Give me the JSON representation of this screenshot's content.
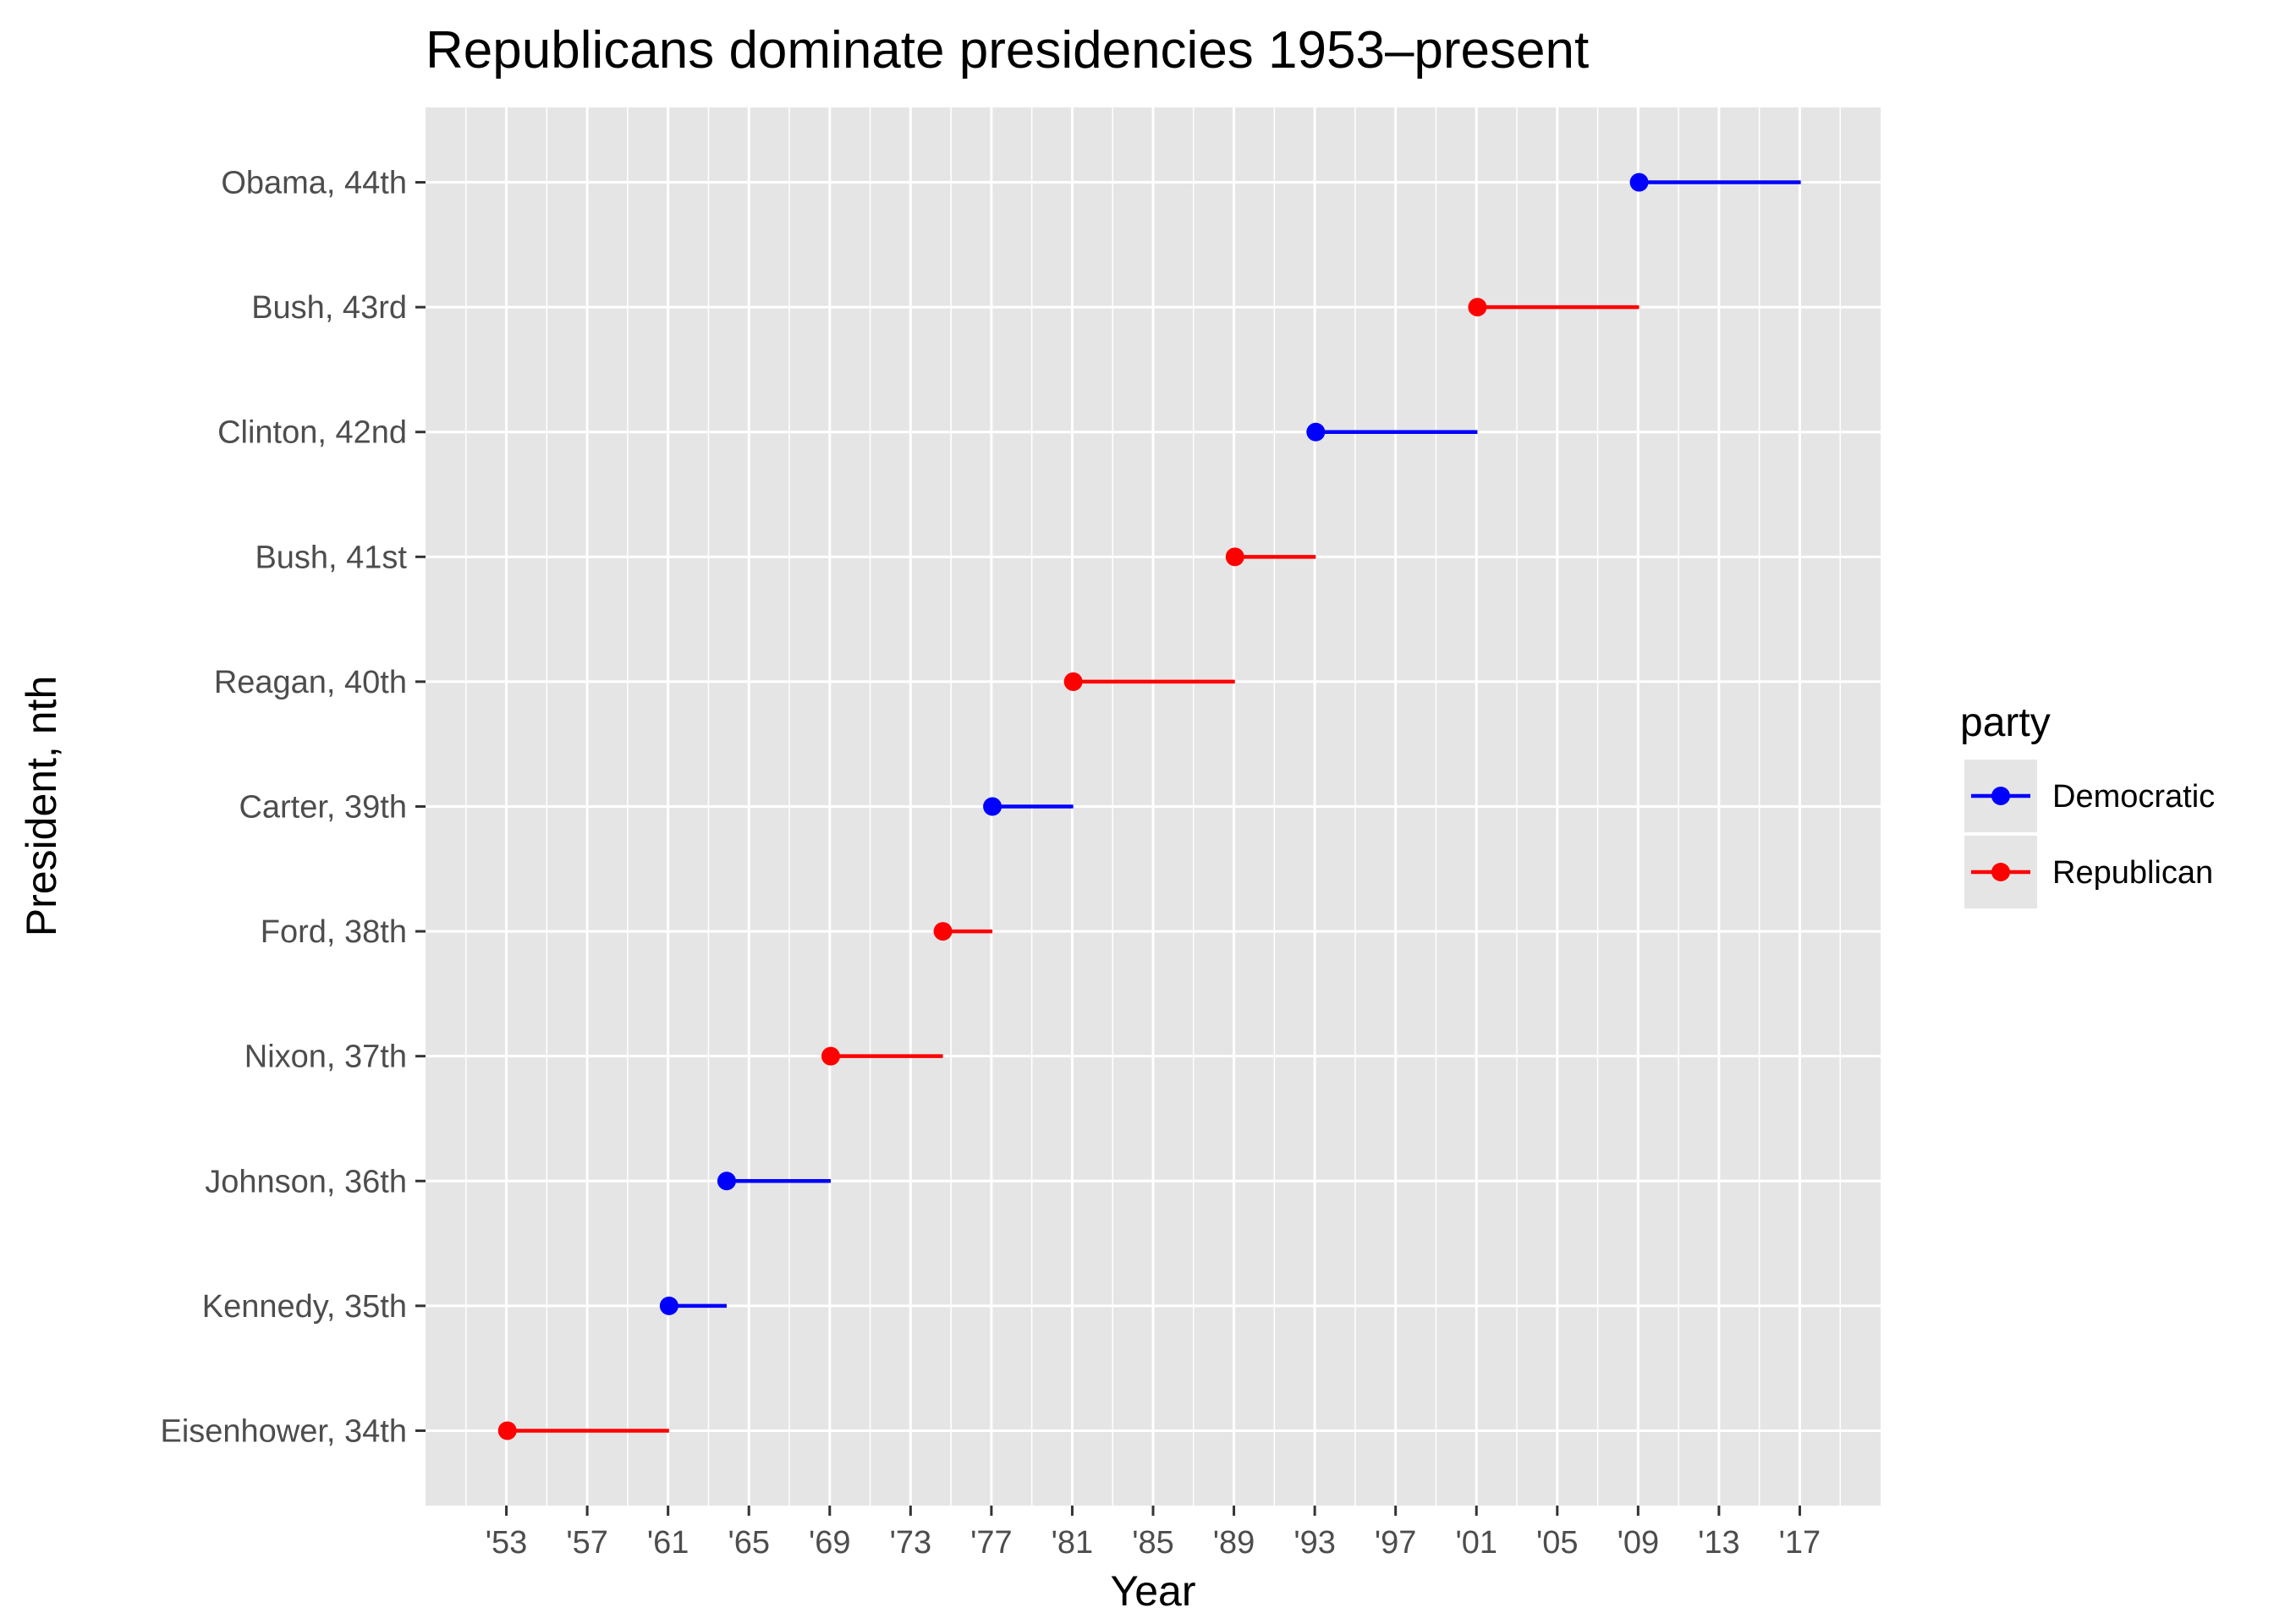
{
  "chart_data": {
    "type": "line",
    "title": "Republicans dominate presidencies 1953–present",
    "xlabel": "Year",
    "ylabel": "President, nth",
    "xlim": [
      1949,
      2021
    ],
    "x_ticks": [
      1953,
      1957,
      1961,
      1965,
      1969,
      1973,
      1977,
      1981,
      1985,
      1989,
      1993,
      1997,
      2001,
      2005,
      2009,
      2013,
      2017
    ],
    "x_tick_labels": [
      "'53",
      "'57",
      "'61",
      "'65",
      "'69",
      "'73",
      "'77",
      "'81",
      "'85",
      "'89",
      "'93",
      "'97",
      "'01",
      "'05",
      "'09",
      "'13",
      "'17"
    ],
    "categories": [
      "Eisenhower, 34th",
      "Kennedy, 35th",
      "Johnson, 36th",
      "Nixon, 37th",
      "Ford, 38th",
      "Carter, 39th",
      "Reagan, 40th",
      "Bush, 41st",
      "Clinton, 42nd",
      "Bush, 43rd",
      "Obama, 44th"
    ],
    "presidents": [
      {
        "label": "Eisenhower, 34th",
        "start": 1953.05,
        "end": 1961.05,
        "party": "Republican"
      },
      {
        "label": "Kennedy, 35th",
        "start": 1961.05,
        "end": 1963.9,
        "party": "Democratic"
      },
      {
        "label": "Johnson, 36th",
        "start": 1963.9,
        "end": 1969.05,
        "party": "Democratic"
      },
      {
        "label": "Nixon, 37th",
        "start": 1969.05,
        "end": 1974.6,
        "party": "Republican"
      },
      {
        "label": "Ford, 38th",
        "start": 1974.6,
        "end": 1977.05,
        "party": "Republican"
      },
      {
        "label": "Carter, 39th",
        "start": 1977.05,
        "end": 1981.05,
        "party": "Democratic"
      },
      {
        "label": "Reagan, 40th",
        "start": 1981.05,
        "end": 1989.05,
        "party": "Republican"
      },
      {
        "label": "Bush, 41st",
        "start": 1989.05,
        "end": 1993.05,
        "party": "Republican"
      },
      {
        "label": "Clinton, 42nd",
        "start": 1993.05,
        "end": 2001.05,
        "party": "Democratic"
      },
      {
        "label": "Bush, 43rd",
        "start": 2001.05,
        "end": 2009.05,
        "party": "Republican"
      },
      {
        "label": "Obama, 44th",
        "start": 2009.05,
        "end": 2017.05,
        "party": "Democratic"
      }
    ],
    "legend": {
      "title": "party",
      "position": "right",
      "items": [
        {
          "name": "Democratic",
          "color": "#0000ff"
        },
        {
          "name": "Republican",
          "color": "#ff0000"
        }
      ]
    },
    "grid": true,
    "panel_background": "#e5e5e5",
    "grid_color": "#ffffff"
  }
}
